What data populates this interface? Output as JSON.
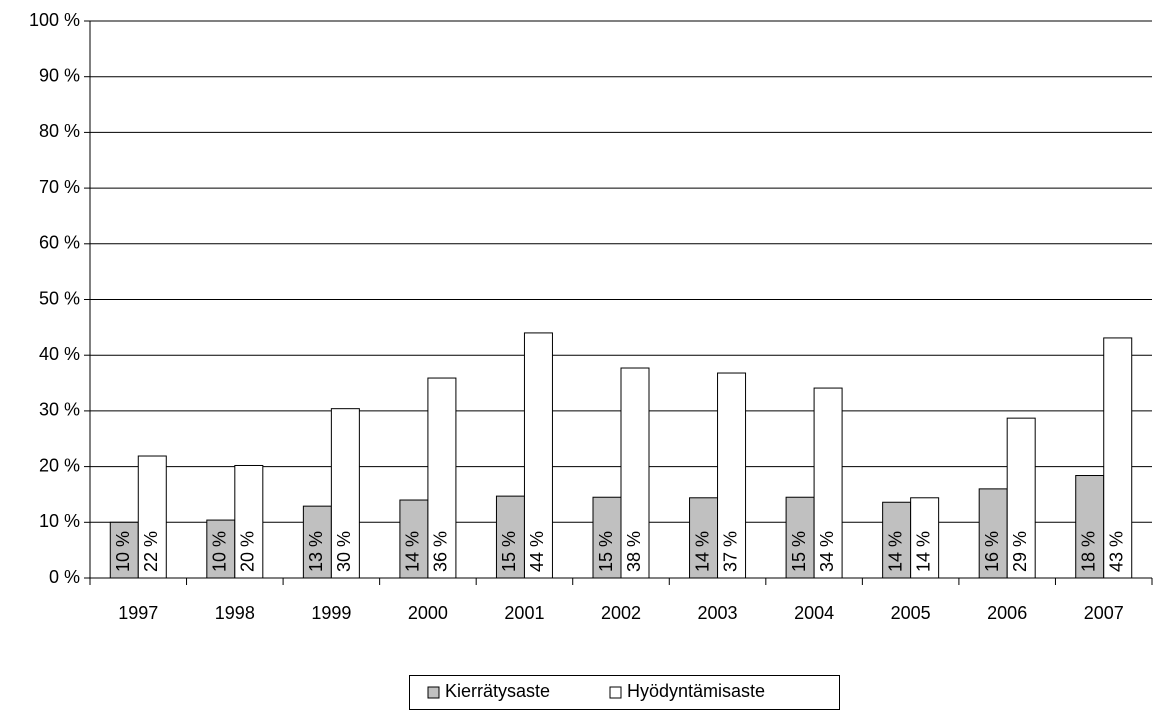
{
  "chart_data": {
    "type": "bar",
    "categories": [
      "1997",
      "1998",
      "1999",
      "2000",
      "2001",
      "2002",
      "2003",
      "2004",
      "2005",
      "2006",
      "2007"
    ],
    "series": [
      {
        "name": "Kierrätysaste",
        "color": "#c0c0c0",
        "values": [
          10.0,
          10.4,
          12.9,
          14.0,
          14.7,
          14.5,
          14.4,
          14.5,
          13.6,
          16.0,
          18.4
        ],
        "value_labels": [
          "10 %",
          "10 %",
          "13 %",
          "14 %",
          "15 %",
          "15 %",
          "14 %",
          "15 %",
          "14 %",
          "16 %",
          "18 %"
        ]
      },
      {
        "name": "Hyödyntämisaste",
        "color": "#ffffff",
        "values": [
          21.9,
          20.2,
          30.4,
          35.9,
          44.0,
          37.7,
          36.8,
          34.1,
          14.4,
          28.7,
          43.1
        ],
        "value_labels": [
          "22 %",
          "20 %",
          "30 %",
          "36 %",
          "44 %",
          "38 %",
          "37 %",
          "34 %",
          "14 %",
          "29 %",
          "43 %"
        ]
      }
    ],
    "ylim": [
      0,
      100
    ],
    "yticks": [
      {
        "value": 0,
        "label": "0 %"
      },
      {
        "value": 10,
        "label": "10 %"
      },
      {
        "value": 20,
        "label": "20 %"
      },
      {
        "value": 30,
        "label": "30 %"
      },
      {
        "value": 40,
        "label": "40 %"
      },
      {
        "value": 50,
        "label": "50 %"
      },
      {
        "value": 60,
        "label": "60 %"
      },
      {
        "value": 70,
        "label": "70 %"
      },
      {
        "value": 80,
        "label": "80 %"
      },
      {
        "value": 90,
        "label": "90 %"
      },
      {
        "value": 100,
        "label": "100 %"
      }
    ],
    "grid": true,
    "legend": "bottom"
  }
}
